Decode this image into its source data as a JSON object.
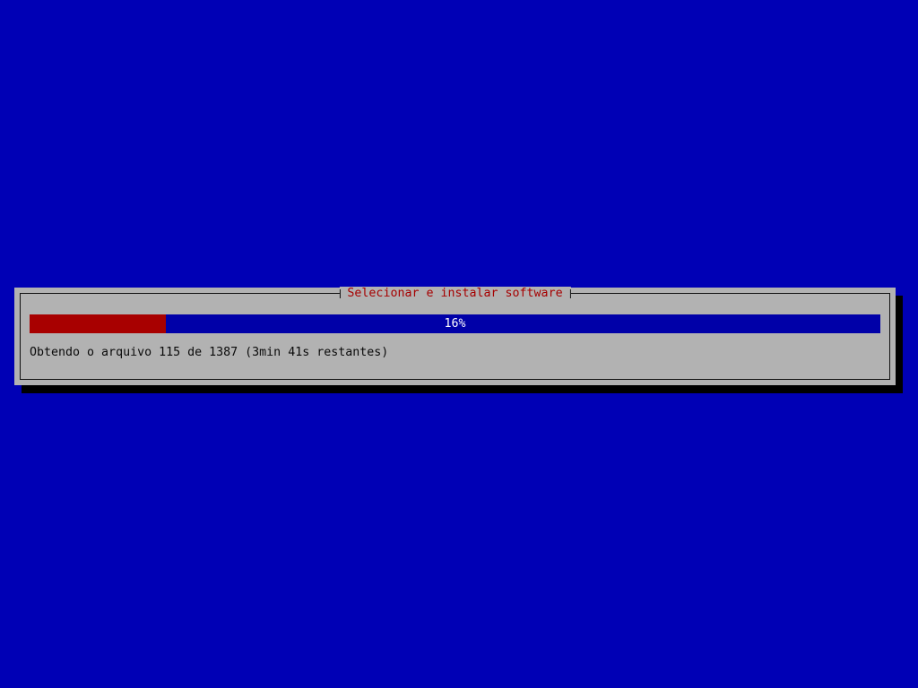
{
  "dialog": {
    "title": "Selecionar e instalar software",
    "progress": {
      "percent": 16,
      "label": "16%"
    },
    "status_text": "Obtendo o arquivo 115 de 1387 (3min 41s restantes)"
  },
  "colors": {
    "background": "#0000b5",
    "dialog_bg": "#b2b2b2",
    "border": "#101010",
    "title_color": "#a60000",
    "bar_fill": "#a80000",
    "bar_empty": "#0000a8",
    "bar_text": "#ffffff",
    "status_color": "#0a0a0a",
    "shadow": "#000000"
  }
}
